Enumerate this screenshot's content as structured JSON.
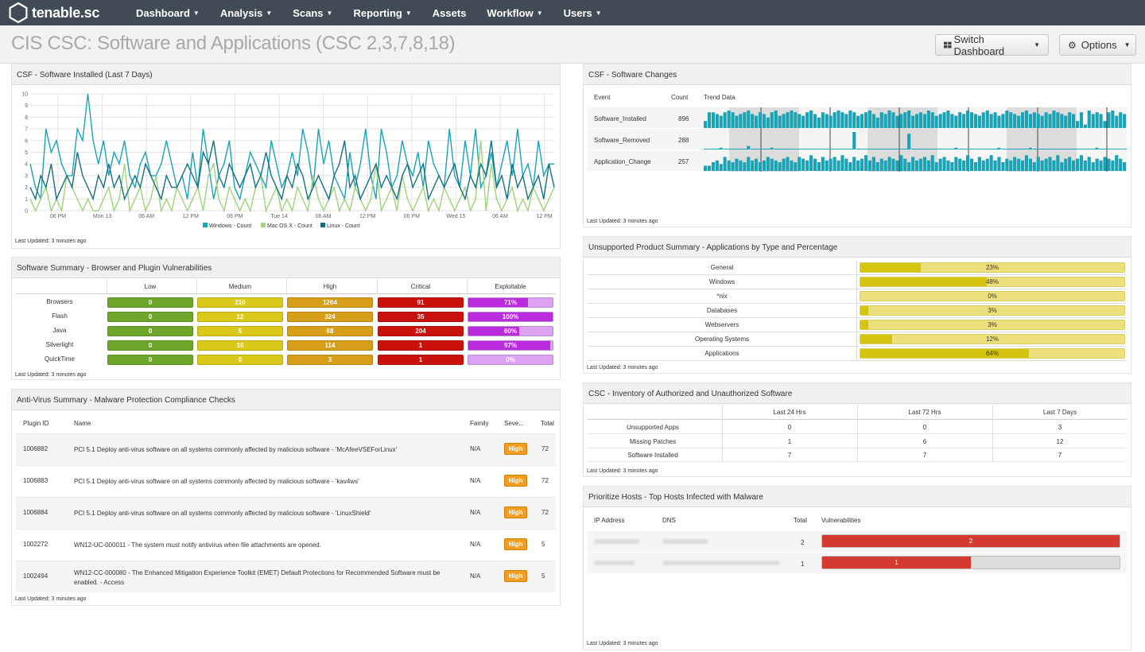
{
  "app": {
    "logo_text": "tenable.sc",
    "logo_icon": "hexagon-logo-icon"
  },
  "nav": [
    {
      "label": "Dashboard",
      "dropdown": true
    },
    {
      "label": "Analysis",
      "dropdown": true
    },
    {
      "label": "Scans",
      "dropdown": true
    },
    {
      "label": "Reporting",
      "dropdown": true
    },
    {
      "label": "Assets",
      "dropdown": false
    },
    {
      "label": "Workflow",
      "dropdown": true
    },
    {
      "label": "Users",
      "dropdown": true
    }
  ],
  "page": {
    "title": "CIS CSC: Software and Applications (CSC 2,3,7,8,18)",
    "switch_dashboard": "Switch Dashboard",
    "options": "Options"
  },
  "last_updated": "Last Updated: 3 minutes ago",
  "colors": {
    "windows": "#19a3b5",
    "mac": "#9fd37c",
    "linux": "#14707e",
    "low": "#6ea52b",
    "medium": "#dac81b",
    "high": "#d79e1a",
    "critical": "#c9120c",
    "exploitable": "#b92bdc",
    "exploitable_track": "#dca4f0",
    "unsupported_fill": "#d5c410",
    "unsupported_track": "#ece07c",
    "vuln_red": "#d33a32",
    "badge_high": "#f29d1f"
  },
  "software_installed": {
    "title": "CSF - Software Installed (Last 7 Days)",
    "chart_data": {
      "type": "line",
      "ylim": [
        0,
        10
      ],
      "y_ticks": [
        "0",
        "1",
        "2",
        "3",
        "4",
        "5",
        "6",
        "7",
        "8",
        "9",
        "10"
      ],
      "x_ticks": [
        "06 PM",
        "Mon 13",
        "06 AM",
        "12 PM",
        "06 PM",
        "Tue 14",
        "06 AM",
        "12 PM",
        "06 PM",
        "Wed 15",
        "06 AM",
        "12 PM"
      ],
      "series": [
        {
          "name": "Windows - Count",
          "color": "#19a3b5",
          "values": [
            4,
            2,
            1,
            7,
            5,
            6,
            4,
            3,
            3,
            7,
            6,
            10,
            6,
            4,
            6,
            3,
            5,
            4,
            6,
            3,
            2,
            4,
            5,
            3,
            3,
            4,
            6,
            4,
            2,
            3,
            1,
            5,
            2,
            7,
            4,
            1,
            3,
            4,
            6,
            2,
            1,
            3,
            5,
            4,
            3,
            2,
            6,
            4,
            2,
            3,
            5,
            3,
            7,
            5,
            2,
            7,
            4,
            6,
            3,
            2,
            1,
            5,
            2,
            4,
            7,
            3,
            1,
            7,
            5,
            2,
            3,
            6,
            4,
            3,
            5,
            2,
            6,
            4,
            3,
            2,
            7,
            3,
            2,
            6,
            3,
            7,
            2,
            3,
            5,
            2,
            4,
            6,
            3,
            7,
            3,
            4,
            2,
            6,
            3,
            4,
            4
          ]
        },
        {
          "name": "Mac OS X - Count",
          "color": "#9fd37c",
          "values": [
            1,
            0,
            1,
            2,
            0,
            1,
            0,
            3,
            2,
            1,
            0,
            1,
            0,
            0,
            1,
            2,
            0,
            1,
            4,
            0,
            1,
            2,
            0,
            1,
            3,
            0,
            1,
            0,
            2,
            1,
            0,
            1,
            2,
            0,
            3,
            4,
            1,
            0,
            2,
            1,
            0,
            1,
            0,
            2,
            3,
            0,
            1,
            2,
            0,
            1,
            0,
            2,
            1,
            0,
            3,
            1,
            0,
            1,
            2,
            0,
            1,
            0,
            2,
            1,
            0,
            1,
            4,
            0,
            1,
            2,
            0,
            3,
            1,
            0,
            1,
            2,
            0,
            1,
            0,
            2,
            1,
            0,
            1,
            2,
            0,
            1,
            6,
            0,
            4,
            1,
            0,
            1,
            2,
            0,
            1,
            0,
            2,
            1,
            0,
            1,
            2
          ]
        },
        {
          "name": "Linux - Count",
          "color": "#14707e",
          "values": [
            2,
            1,
            3,
            2,
            4,
            1,
            2,
            3,
            2,
            5,
            3,
            2,
            1,
            3,
            2,
            4,
            2,
            3,
            1,
            2,
            3,
            2,
            4,
            3,
            2,
            1,
            3,
            2,
            2,
            3,
            4,
            3,
            2,
            5,
            4,
            6,
            3,
            2,
            4,
            3,
            2,
            3,
            4,
            2,
            3,
            5,
            3,
            2,
            1,
            3,
            2,
            4,
            3,
            1,
            2,
            3,
            2,
            1,
            3,
            4,
            6,
            2,
            3,
            1,
            2,
            3,
            4,
            2,
            3,
            2,
            1,
            3,
            4,
            2,
            3,
            4,
            1,
            2,
            3,
            2,
            3,
            4,
            2,
            1,
            3,
            2,
            4,
            3,
            6,
            2,
            3,
            1,
            4,
            2,
            3,
            1,
            2,
            3,
            1,
            4,
            2
          ]
        }
      ]
    }
  },
  "software_summary": {
    "title": "Software Summary - Browser and Plugin Vulnerabilities",
    "columns": [
      "Low",
      "Medium",
      "High",
      "Critical",
      "Exploitable"
    ],
    "rows": [
      {
        "name": "Browsers",
        "low": "0",
        "medium": "210",
        "high": "1264",
        "critical": "91",
        "exploitable": "71%",
        "exploitable_value": 71
      },
      {
        "name": "Flash",
        "low": "0",
        "medium": "12",
        "high": "324",
        "critical": "35",
        "exploitable": "100%",
        "exploitable_value": 100
      },
      {
        "name": "Java",
        "low": "0",
        "medium": "5",
        "high": "68",
        "critical": "204",
        "exploitable": "60%",
        "exploitable_value": 60
      },
      {
        "name": "Silverlight",
        "low": "0",
        "medium": "10",
        "high": "114",
        "critical": "1",
        "exploitable": "97%",
        "exploitable_value": 97
      },
      {
        "name": "QuickTime",
        "low": "0",
        "medium": "0",
        "high": "3",
        "critical": "1",
        "exploitable": "0%",
        "exploitable_value": 0
      }
    ]
  },
  "antivirus": {
    "title": "Anti-Virus Summary - Malware Protection Compliance Checks",
    "columns": {
      "plugin_id": "Plugin ID",
      "name": "Name",
      "family": "Family",
      "severity": "Seve...",
      "total": "Total"
    },
    "rows": [
      {
        "plugin_id": "1006882",
        "name": "PCI 5.1 Deploy anti-virus software on all systems commonly affected by malicious software - 'McAfeeVSEForLinux'",
        "family": "N/A",
        "severity": "High",
        "total": "72"
      },
      {
        "plugin_id": "1006883",
        "name": "PCI 5.1 Deploy anti-virus software on all systems commonly affected by malicious software - 'kav4ws'",
        "family": "N/A",
        "severity": "High",
        "total": "72"
      },
      {
        "plugin_id": "1006884",
        "name": "PCI 5.1 Deploy anti-virus software on all systems commonly affected by malicious software - 'LinuxShield'",
        "family": "N/A",
        "severity": "High",
        "total": "72"
      },
      {
        "plugin_id": "1002272",
        "name": "WN12-UC-000011 - The system must notify antivirus when file attachments are opened.",
        "family": "N/A",
        "severity": "High",
        "total": "5"
      },
      {
        "plugin_id": "1002494",
        "name": "WN12-CC-000080 - The Enhanced Mitigation Experience Toolkit (EMET) Default Protections for Recommended Software must be enabled. - Access",
        "family": "N/A",
        "severity": "High",
        "total": "5"
      }
    ]
  },
  "software_changes": {
    "title": "CSF - Software Changes",
    "columns": {
      "event": "Event",
      "count": "Count",
      "trend": "Trend Data"
    },
    "rows": [
      {
        "event": "Software_Installed",
        "count": "896"
      },
      {
        "event": "Software_Removed",
        "count": "288"
      },
      {
        "event": "Application_Change",
        "count": "257"
      }
    ]
  },
  "unsupported": {
    "title": "Unsupported Product Summary - Applications by Type and Percentage",
    "rows": [
      {
        "label": "General",
        "value": "23%",
        "pct": 23
      },
      {
        "label": "Windows",
        "value": "48%",
        "pct": 48
      },
      {
        "label": "*nix",
        "value": "0%",
        "pct": 0
      },
      {
        "label": "Databases",
        "value": "3%",
        "pct": 3
      },
      {
        "label": "Webservers",
        "value": "3%",
        "pct": 3
      },
      {
        "label": "Operating Systems",
        "value": "12%",
        "pct": 12
      },
      {
        "label": "Applications",
        "value": "64%",
        "pct": 64
      }
    ]
  },
  "inventory": {
    "title": "CSC - Inventory of Authorized and Unauthorized Software",
    "columns": [
      "Last 24 Hrs",
      "Last 72 Hrs",
      "Last 7 Days"
    ],
    "rows": [
      {
        "label": "Unsupported Apps",
        "values": [
          "0",
          "0",
          "3"
        ]
      },
      {
        "label": "Missing Patches",
        "values": [
          "1",
          "6",
          "12"
        ]
      },
      {
        "label": "Software Installed",
        "values": [
          "7",
          "7",
          "7"
        ]
      }
    ]
  },
  "prioritize": {
    "title": "Prioritize Hosts - Top Hosts Infected with Malware",
    "columns": {
      "ip": "IP Address",
      "dns": "DNS",
      "total": "Total",
      "vulns": "Vulnerabilities"
    },
    "rows": [
      {
        "total": "2",
        "vulns": "2",
        "vuln_fraction": 1.0
      },
      {
        "total": "1",
        "vulns": "1",
        "vuln_fraction": 0.5
      }
    ]
  }
}
